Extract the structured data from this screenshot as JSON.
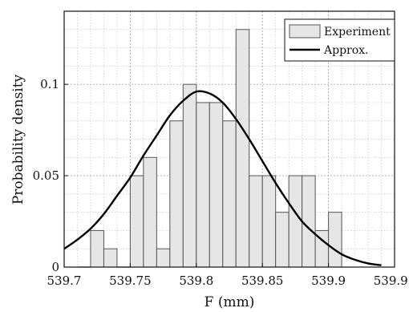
{
  "chart_data": {
    "type": "bar",
    "title": "",
    "xlabel": "F (mm)",
    "ylabel": "Probability density",
    "xlim": [
      539.7,
      539.95
    ],
    "ylim": [
      0,
      0.14
    ],
    "xticks": [
      "539.7",
      "539.75",
      "539.8",
      "539.85",
      "539.9",
      "539.95"
    ],
    "yticks": [
      "0",
      "0.05",
      "0.1"
    ],
    "grid": true,
    "minor_grid": true,
    "legend": {
      "placement": "top-right",
      "entries": [
        "Experiment",
        "Approx."
      ]
    },
    "series": [
      {
        "name": "Experiment",
        "type": "histogram",
        "color": "#e6e6e6",
        "edge_color": "#555555",
        "bin_width": 0.01,
        "bin_starts": [
          539.71,
          539.72,
          539.73,
          539.74,
          539.75,
          539.76,
          539.77,
          539.78,
          539.79,
          539.8,
          539.81,
          539.82,
          539.83,
          539.84,
          539.85,
          539.86,
          539.87,
          539.88,
          539.89,
          539.9
        ],
        "values": [
          0,
          0.02,
          0.01,
          0,
          0.05,
          0.06,
          0.01,
          0.08,
          0.1,
          0.09,
          0.09,
          0.08,
          0.13,
          0.05,
          0.05,
          0.03,
          0.05,
          0.05,
          0.02,
          0.03
        ]
      },
      {
        "name": "Approx.",
        "type": "line",
        "color": "#000000",
        "x": [
          539.7,
          539.71,
          539.72,
          539.73,
          539.74,
          539.75,
          539.76,
          539.77,
          539.78,
          539.79,
          539.8,
          539.81,
          539.82,
          539.83,
          539.84,
          539.85,
          539.86,
          539.87,
          539.88,
          539.89,
          539.9,
          539.91,
          539.92,
          539.93,
          539.94
        ],
        "y": [
          0.01,
          0.015,
          0.021,
          0.029,
          0.039,
          0.049,
          0.061,
          0.072,
          0.083,
          0.091,
          0.096,
          0.095,
          0.09,
          0.081,
          0.07,
          0.058,
          0.046,
          0.035,
          0.025,
          0.018,
          0.012,
          0.007,
          0.004,
          0.002,
          0.001
        ]
      }
    ]
  }
}
